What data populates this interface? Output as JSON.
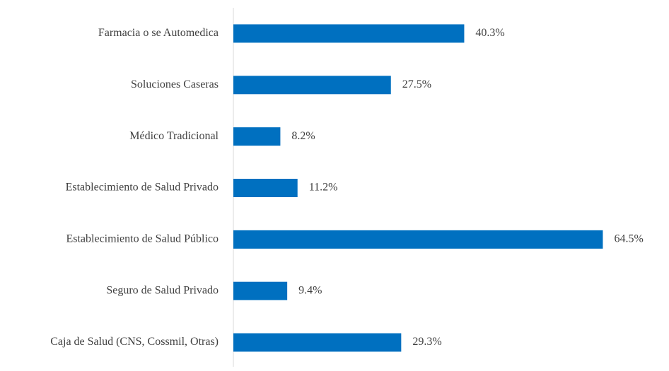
{
  "chart_data": {
    "type": "barh",
    "categories": [
      "Farmacia o se Automedica",
      "Soluciones Caseras",
      "Médico Tradicional",
      "Establecimiento de Salud Privado",
      "Establecimiento de Salud Público",
      "Seguro de Salud Privado",
      "Caja de Salud (CNS, Cossmil, Otras)"
    ],
    "values": [
      40.3,
      27.5,
      8.2,
      11.2,
      64.5,
      9.4,
      29.3
    ],
    "value_labels": [
      "40.3%",
      "27.5%",
      "8.2%",
      "11.2%",
      "64.5%",
      "9.4%",
      "29.3%"
    ],
    "color": "#0070c0",
    "xlim": [
      0,
      70
    ]
  }
}
